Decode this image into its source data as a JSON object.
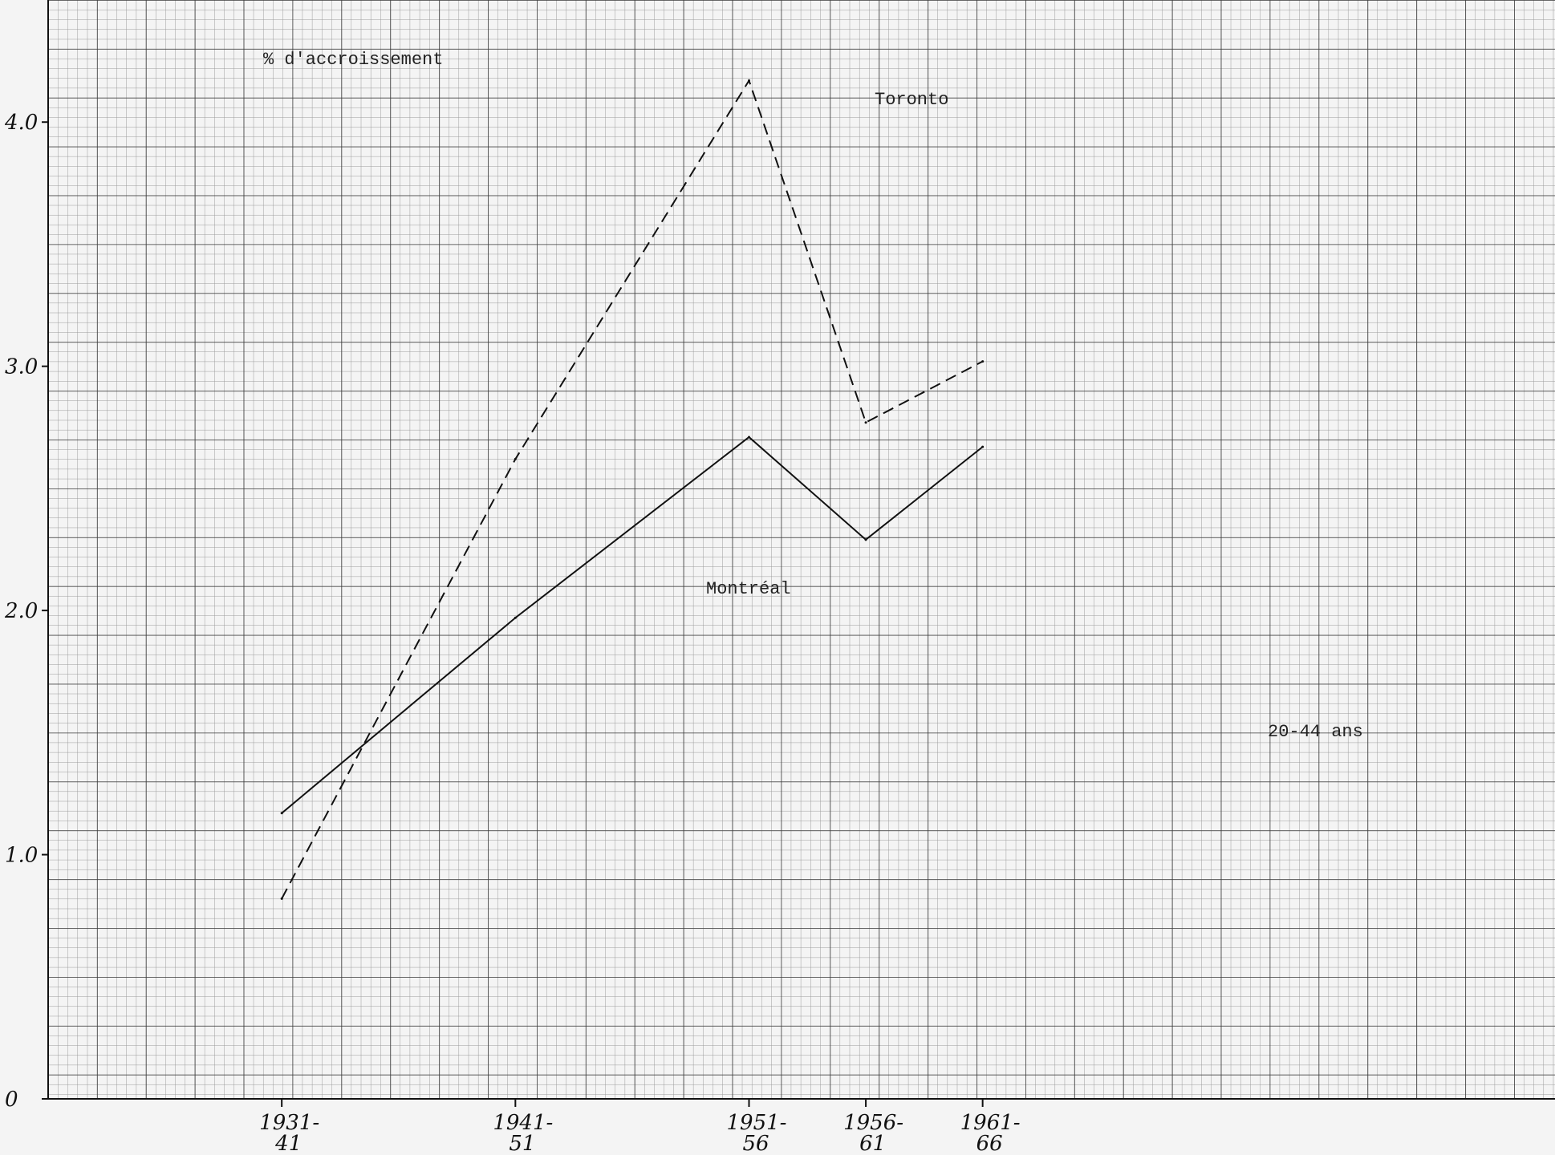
{
  "chart_data": {
    "type": "line",
    "title": "",
    "ylabel": "% d'accroissement",
    "xlabel": "",
    "annotation": "20-44 ans",
    "x": [
      {
        "top": "1931-",
        "bottom": "41"
      },
      {
        "top": "1941-",
        "bottom": "51"
      },
      {
        "top": "1951-",
        "bottom": "56"
      },
      {
        "top": "1956-",
        "bottom": "61"
      },
      {
        "top": "1961-",
        "bottom": "66"
      }
    ],
    "x_years": [
      1936,
      1946,
      1956,
      1961,
      1966
    ],
    "y_ticks": [
      {
        "value": 0,
        "label": "0"
      },
      {
        "value": 1,
        "label": "1.0"
      },
      {
        "value": 2,
        "label": "2.0"
      },
      {
        "value": 3,
        "label": "3.0"
      },
      {
        "value": 4,
        "label": "4.0"
      }
    ],
    "ylim": [
      0,
      4.5
    ],
    "xlim": [
      1926,
      1990.5
    ],
    "grid": true,
    "series": [
      {
        "name": "Montréal",
        "style": "solid",
        "values": [
          1.17,
          1.97,
          2.71,
          2.29,
          2.67
        ]
      },
      {
        "name": "Toronto",
        "style": "dashed",
        "values": [
          0.82,
          2.62,
          4.17,
          2.77,
          3.02
        ]
      }
    ],
    "colors": {
      "line": "#111111",
      "grid_major": "#3a3a3a",
      "grid_minor": "#8a8a8a",
      "background": "#f4f4f4"
    }
  }
}
